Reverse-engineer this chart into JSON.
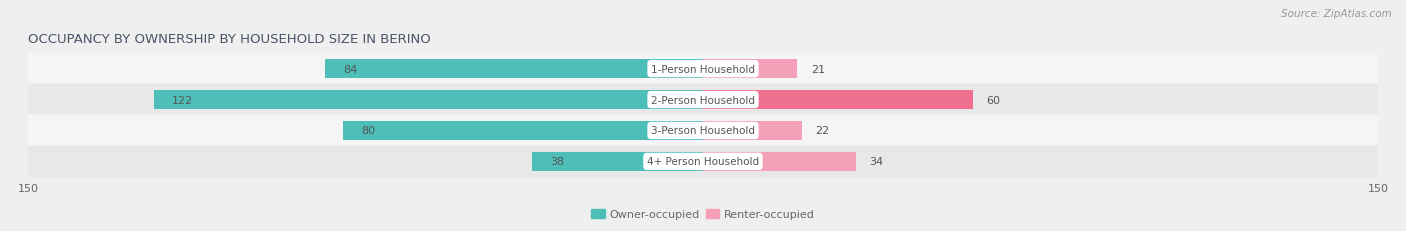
{
  "title": "OCCUPANCY BY OWNERSHIP BY HOUSEHOLD SIZE IN BERINO",
  "source": "Source: ZipAtlas.com",
  "categories": [
    "1-Person Household",
    "2-Person Household",
    "3-Person Household",
    "4+ Person Household"
  ],
  "owner_values": [
    84,
    122,
    80,
    38
  ],
  "renter_values": [
    21,
    60,
    22,
    34
  ],
  "owner_color": "#4DBFB8",
  "renter_color": "#F07090",
  "renter_color_light": "#F4A0B8",
  "axis_max": 150,
  "bg_color": "#EFEFEF",
  "row_bg_even": "#F5F5F5",
  "row_bg_odd": "#E8E8E8",
  "title_fontsize": 9.5,
  "source_fontsize": 7.5,
  "bar_label_fontsize": 8,
  "category_fontsize": 7.5,
  "legend_fontsize": 8,
  "axis_label_fontsize": 8
}
